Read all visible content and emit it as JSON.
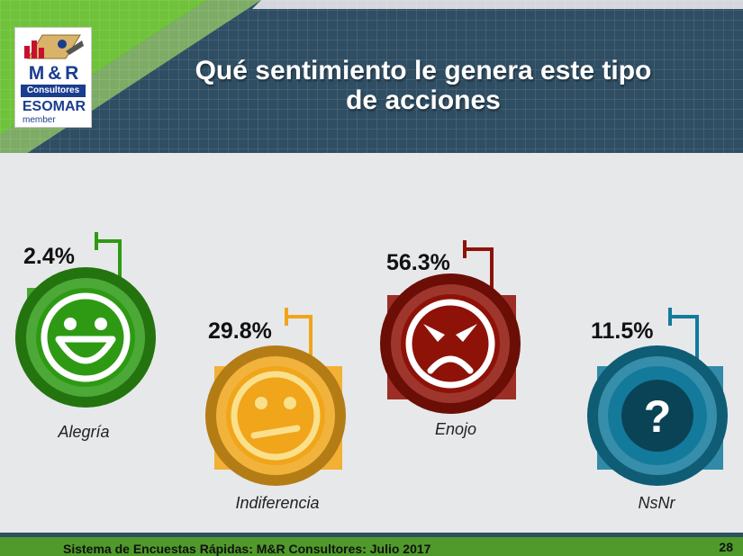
{
  "header": {
    "title_line1": "Qué sentimiento le genera este tipo",
    "title_line2": "de acciones"
  },
  "logo": {
    "brand": "M & R",
    "consultores": "Consultores",
    "esomar": "ESOMAR",
    "member": "member"
  },
  "chart_data": {
    "type": "pictograph",
    "categories": [
      "Alegría",
      "Indiferencia",
      "Enojo",
      "NsNr"
    ],
    "values": [
      2.4,
      29.8,
      56.3,
      11.5
    ],
    "value_labels": [
      "2.4%",
      "29.8%",
      "56.3%",
      "11.5%"
    ],
    "icons": [
      "happy-face-icon",
      "neutral-face-icon",
      "angry-face-icon",
      "question-mark-icon"
    ],
    "colors": [
      "#2e9a14",
      "#f0a51a",
      "#8e1208",
      "#147a9c"
    ]
  },
  "footer": {
    "text": "Sistema de Encuestas Rápidas: M&R Consultores: Julio 2017",
    "page": "28"
  }
}
